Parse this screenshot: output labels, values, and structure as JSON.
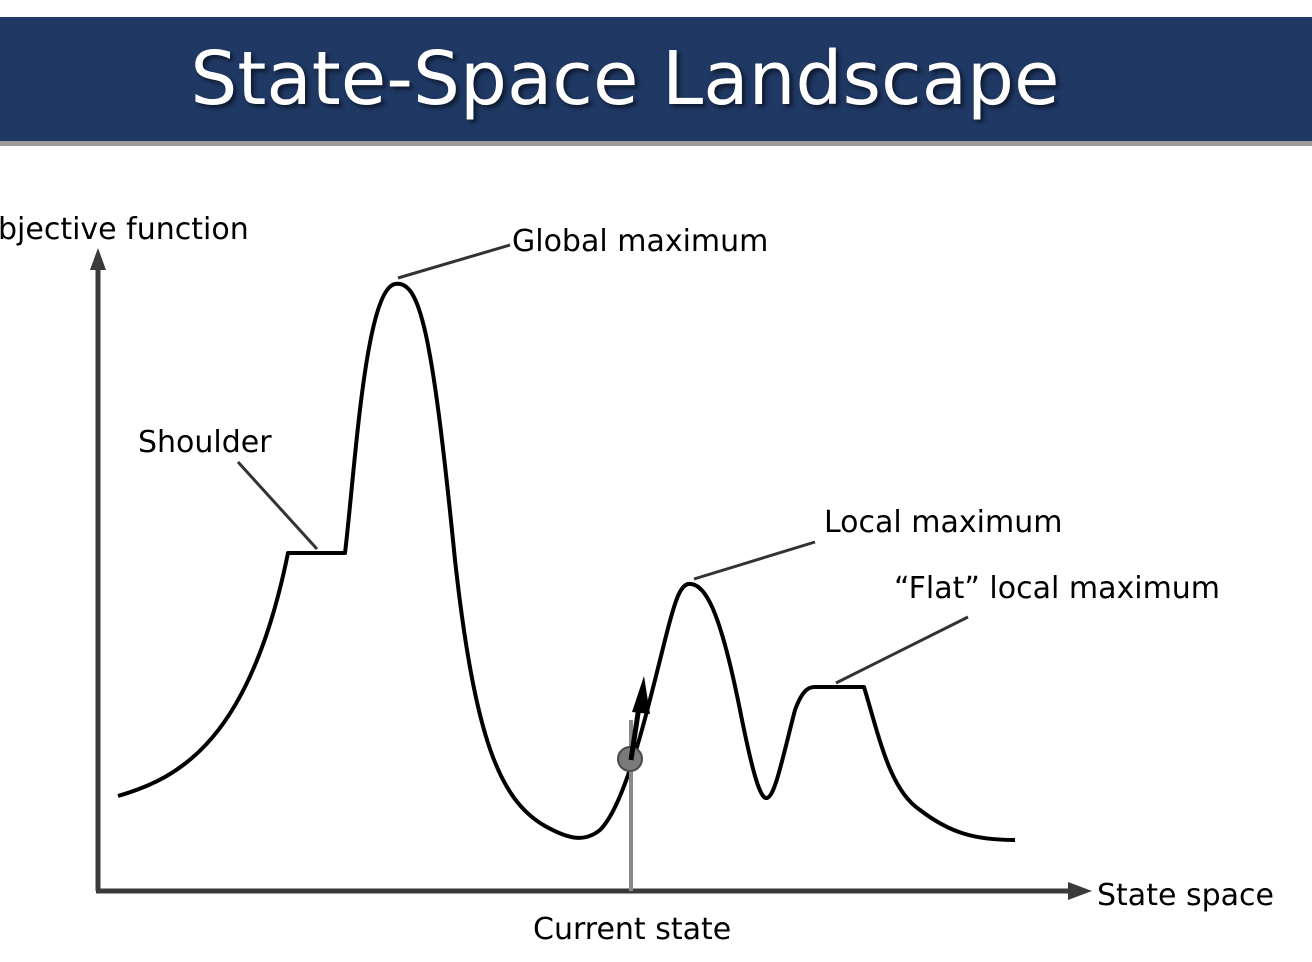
{
  "slide": {
    "title": "State-Space Landscape"
  },
  "diagram": {
    "y_axis_label": "bjective function",
    "x_axis_label": "State space",
    "labels": {
      "global_maximum": "Global maximum",
      "shoulder": "Shoulder",
      "local_maximum": "Local maximum",
      "flat_local_maximum": "“Flat” local maximum",
      "current_state": "Current state"
    },
    "colors": {
      "title_bar": "#1f3864",
      "axis": "#3a3a3a",
      "curve": "#000000",
      "current_state_marker": "#7a7a7a"
    }
  }
}
